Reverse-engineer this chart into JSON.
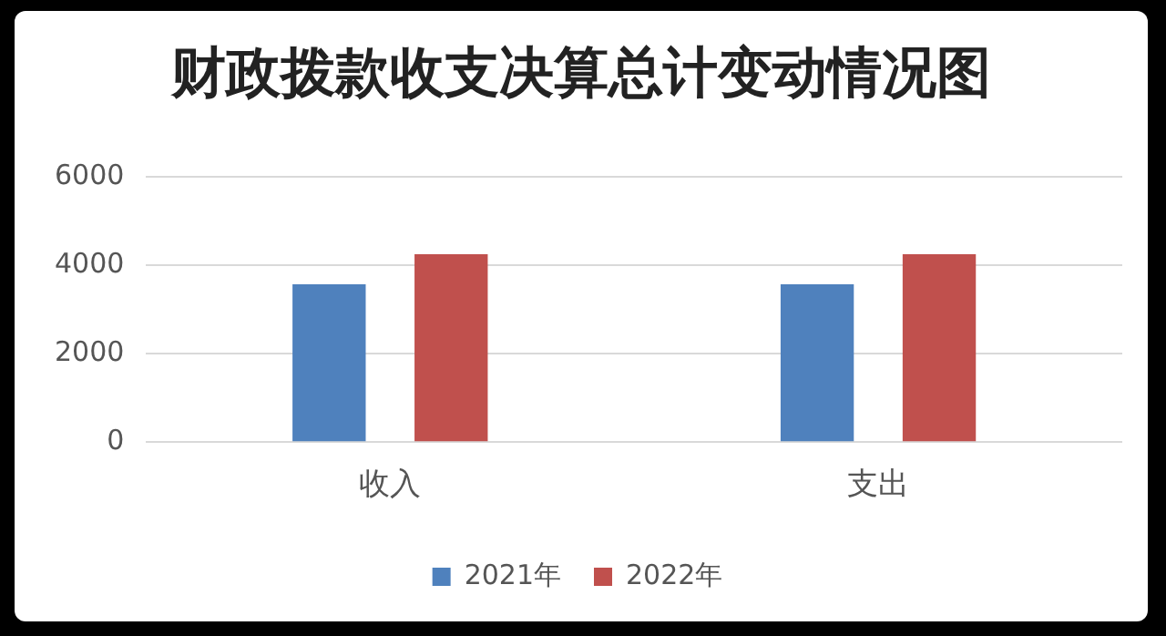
{
  "chart_data": {
    "type": "bar",
    "title": "财政拨款收支决算总计变动情况图",
    "categories": [
      "收入",
      "支出"
    ],
    "series": [
      {
        "name": "2021年",
        "color": "#4f81bd",
        "values": [
          3570,
          3570
        ]
      },
      {
        "name": "2022年",
        "color": "#c0504d",
        "values": [
          4250,
          4250
        ]
      }
    ],
    "ylim": [
      0,
      6000
    ],
    "yticks": [
      0,
      2000,
      4000,
      6000
    ],
    "grid": "y",
    "legend": "bottom"
  }
}
